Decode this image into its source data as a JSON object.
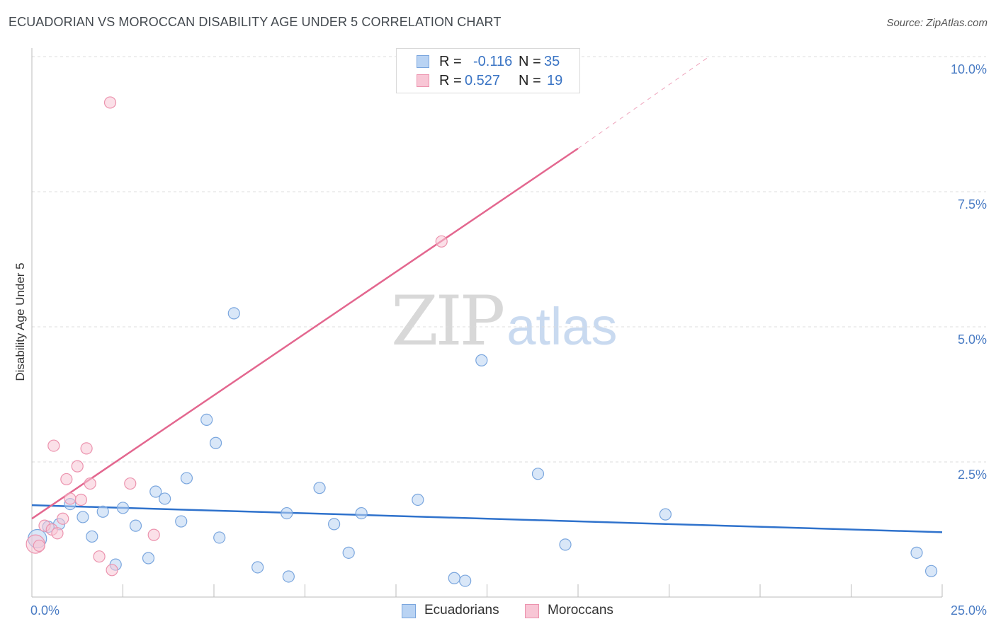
{
  "header": {
    "title": "ECUADORIAN VS MOROCCAN DISABILITY AGE UNDER 5 CORRELATION CHART",
    "source": "Source: ZipAtlas.com"
  },
  "watermark": {
    "zip": "ZIP",
    "atlas": "atlas"
  },
  "legend_top": {
    "rows": [
      {
        "r_label": "R =",
        "r_value": "-0.116",
        "n_label": "N =",
        "n_value": "35"
      },
      {
        "r_label": "R =",
        "r_value": "0.527",
        "n_label": "N =",
        "n_value": "19"
      }
    ]
  },
  "legend_bottom": {
    "items": [
      "Ecuadorians",
      "Moroccans"
    ]
  },
  "colors": {
    "ecuadorian_fill": "#b9d3f3",
    "ecuadorian_stroke": "#7aa6de",
    "ecuadorian_line": "#2f72cc",
    "moroccan_fill": "#f8c6d5",
    "moroccan_stroke": "#ec93ae",
    "moroccan_line": "#e3678f",
    "tick_text": "#4a7cc4",
    "grid": "#dcdcdc"
  },
  "chart_data": {
    "type": "scatter",
    "title": "ECUADORIAN VS MOROCCAN DISABILITY AGE UNDER 5 CORRELATION CHART",
    "xlabel": "",
    "ylabel": "Disability Age Under 5",
    "xlim": [
      0,
      25
    ],
    "ylim": [
      0,
      10
    ],
    "x_tick_labels": [
      {
        "value": 0,
        "label": "0.0%"
      },
      {
        "value": 25,
        "label": "25.0%"
      }
    ],
    "y_tick_labels": [
      {
        "value": 2.5,
        "label": "2.5%"
      },
      {
        "value": 5.0,
        "label": "5.0%"
      },
      {
        "value": 7.5,
        "label": "7.5%"
      },
      {
        "value": 10.0,
        "label": "10.0%"
      }
    ],
    "series": [
      {
        "name": "Ecuadorians",
        "points": [
          [
            0.15,
            1.08
          ],
          [
            0.45,
            1.3
          ],
          [
            0.75,
            1.35
          ],
          [
            1.05,
            1.72
          ],
          [
            1.4,
            1.48
          ],
          [
            1.65,
            1.12
          ],
          [
            1.95,
            1.58
          ],
          [
            2.3,
            0.6
          ],
          [
            2.5,
            1.65
          ],
          [
            2.85,
            1.32
          ],
          [
            3.2,
            0.72
          ],
          [
            3.4,
            1.95
          ],
          [
            3.65,
            1.82
          ],
          [
            4.1,
            1.4
          ],
          [
            4.25,
            2.2
          ],
          [
            4.8,
            3.28
          ],
          [
            5.05,
            2.85
          ],
          [
            5.15,
            1.1
          ],
          [
            5.55,
            5.25
          ],
          [
            6.2,
            0.55
          ],
          [
            7.05,
            0.38
          ],
          [
            7.0,
            1.55
          ],
          [
            7.9,
            2.02
          ],
          [
            8.3,
            1.35
          ],
          [
            8.7,
            0.82
          ],
          [
            9.05,
            1.55
          ],
          [
            10.6,
            1.8
          ],
          [
            11.6,
            0.35
          ],
          [
            11.9,
            0.3
          ],
          [
            12.35,
            4.38
          ],
          [
            13.9,
            2.28
          ],
          [
            14.65,
            0.97
          ],
          [
            17.4,
            1.53
          ],
          [
            24.3,
            0.82
          ],
          [
            24.7,
            0.48
          ]
        ],
        "trend": {
          "x": [
            0,
            25
          ],
          "y": [
            1.7,
            1.2
          ]
        }
      },
      {
        "name": "Moroccans",
        "points": [
          [
            0.1,
            0.98
          ],
          [
            0.2,
            0.95
          ],
          [
            0.35,
            1.32
          ],
          [
            0.55,
            1.25
          ],
          [
            0.6,
            2.8
          ],
          [
            0.7,
            1.18
          ],
          [
            0.85,
            1.45
          ],
          [
            0.95,
            2.18
          ],
          [
            1.05,
            1.82
          ],
          [
            1.25,
            2.42
          ],
          [
            1.35,
            1.8
          ],
          [
            1.5,
            2.75
          ],
          [
            1.6,
            2.1
          ],
          [
            1.85,
            0.75
          ],
          [
            2.15,
            9.15
          ],
          [
            2.2,
            0.5
          ],
          [
            2.7,
            2.1
          ],
          [
            3.35,
            1.15
          ],
          [
            11.25,
            6.58
          ]
        ],
        "trend": {
          "x": [
            0,
            15
          ],
          "y": [
            1.45,
            8.3
          ]
        },
        "trend_extension": {
          "x": [
            15,
            18.6
          ],
          "y": [
            8.3,
            10.0
          ]
        }
      }
    ]
  }
}
